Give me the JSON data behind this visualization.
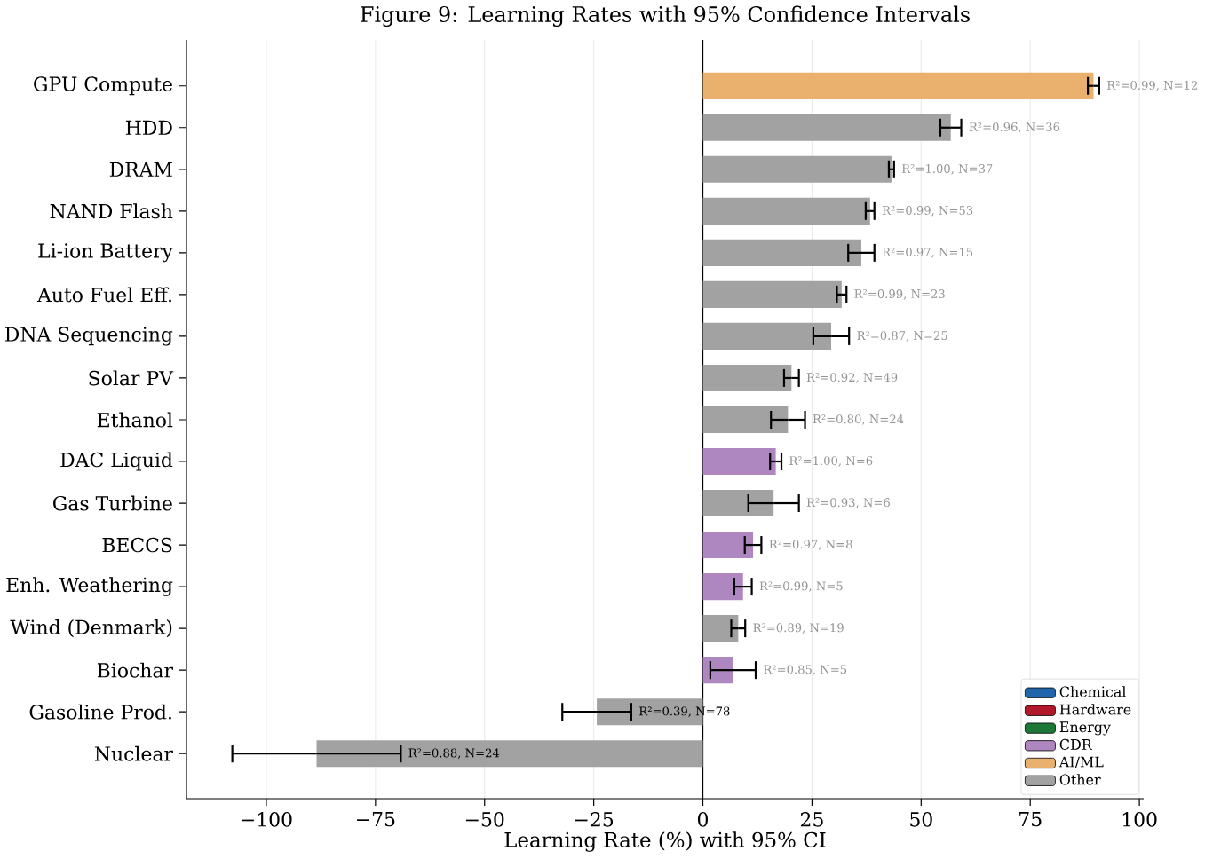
{
  "chart_data": {
    "type": "bar",
    "orientation": "horizontal",
    "title": "Figure 9: Learning Rates with 95% Confidence Intervals",
    "xlabel": "Learning Rate (%) with 95% CI",
    "categories": [
      "GPU Compute",
      "HDD",
      "DRAM",
      "NAND Flash",
      "Li-ion Battery",
      "Auto Fuel Eff.",
      "DNA Sequencing",
      "Solar PV",
      "Ethanol",
      "DAC Liquid",
      "Gas Turbine",
      "BECCS",
      "Enh. Weathering",
      "Wind (Denmark)",
      "Biochar",
      "Gasoline Prod.",
      "Nuclear"
    ],
    "series": [
      {
        "name": "Chemical",
        "color": "#2166ac",
        "values": [
          null,
          null,
          null,
          null,
          null,
          null,
          null,
          null,
          null,
          null,
          null,
          null,
          null,
          null,
          null,
          null,
          null
        ]
      },
      {
        "name": "Hardware",
        "color": "#b2182b",
        "values": [
          null,
          null,
          null,
          null,
          null,
          null,
          null,
          null,
          null,
          null,
          null,
          null,
          null,
          null,
          null,
          null,
          null
        ]
      },
      {
        "name": "Energy",
        "color": "#1b7837",
        "values": [
          null,
          null,
          null,
          null,
          null,
          null,
          null,
          null,
          null,
          null,
          null,
          null,
          null,
          null,
          null,
          null,
          null
        ]
      },
      {
        "name": "CDR",
        "color": "#ae86c0",
        "values": [
          null,
          null,
          null,
          null,
          null,
          null,
          null,
          null,
          null,
          16.7,
          null,
          11.5,
          9.2,
          null,
          6.9,
          null,
          null
        ],
        "errors": [
          null,
          null,
          null,
          null,
          null,
          null,
          null,
          null,
          null,
          1.3,
          null,
          1.9,
          2.0,
          null,
          5.2,
          null,
          null
        ],
        "value_labels": [
          null,
          null,
          null,
          null,
          null,
          null,
          null,
          null,
          null,
          "R²=1.00, N=6",
          null,
          "R²=0.97, N=8",
          "R²=0.99, N=5",
          null,
          "R²=0.85, N=5",
          null,
          null
        ]
      },
      {
        "name": "AI/ML",
        "color": "#e9b06e",
        "values": [
          89.5,
          null,
          null,
          null,
          null,
          null,
          null,
          null,
          null,
          null,
          null,
          null,
          null,
          null,
          null,
          null,
          null
        ],
        "errors": [
          1.3,
          null,
          null,
          null,
          null,
          null,
          null,
          null,
          null,
          null,
          null,
          null,
          null,
          null,
          null,
          null,
          null
        ],
        "value_labels": [
          "R²=0.99, N=12",
          null,
          null,
          null,
          null,
          null,
          null,
          null,
          null,
          null,
          null,
          null,
          null,
          null,
          null,
          null,
          null
        ]
      },
      {
        "name": "Other",
        "color": "#a2a2a2",
        "values": [
          null,
          56.8,
          43.2,
          38.3,
          36.3,
          31.8,
          29.4,
          20.3,
          19.5,
          null,
          16.2,
          null,
          null,
          8.1,
          null,
          -24.3,
          -88.5
        ],
        "errors": [
          null,
          2.4,
          0.6,
          1.0,
          3.0,
          1.1,
          4.1,
          1.7,
          3.9,
          null,
          5.8,
          null,
          null,
          1.6,
          null,
          7.9,
          19.3
        ],
        "value_labels": [
          null,
          "R²=0.96, N=36",
          "R²=1.00, N=37",
          "R²=0.99, N=53",
          "R²=0.97, N=15",
          "R²=0.99, N=23",
          "R²=0.87, N=25",
          "R²=0.92, N=49",
          "R²=0.80, N=24",
          null,
          "R²=0.93, N=6",
          null,
          null,
          "R²=0.89, N=19",
          null,
          "R²=0.39, N=78",
          "R²=0.88, N=24"
        ]
      }
    ],
    "xlim": [
      -118.3,
      101
    ],
    "xticks": [
      {
        "value": -100,
        "label": "−100"
      },
      {
        "value": -75,
        "label": "−75"
      },
      {
        "value": -50,
        "label": "−50"
      },
      {
        "value": -25,
        "label": "−25"
      },
      0,
      25,
      50,
      75,
      100
    ],
    "grid": "x",
    "legend": "bottom right",
    "ref_lines": [
      {
        "axis": "x",
        "value": 0,
        "color": "#000000"
      }
    ]
  }
}
